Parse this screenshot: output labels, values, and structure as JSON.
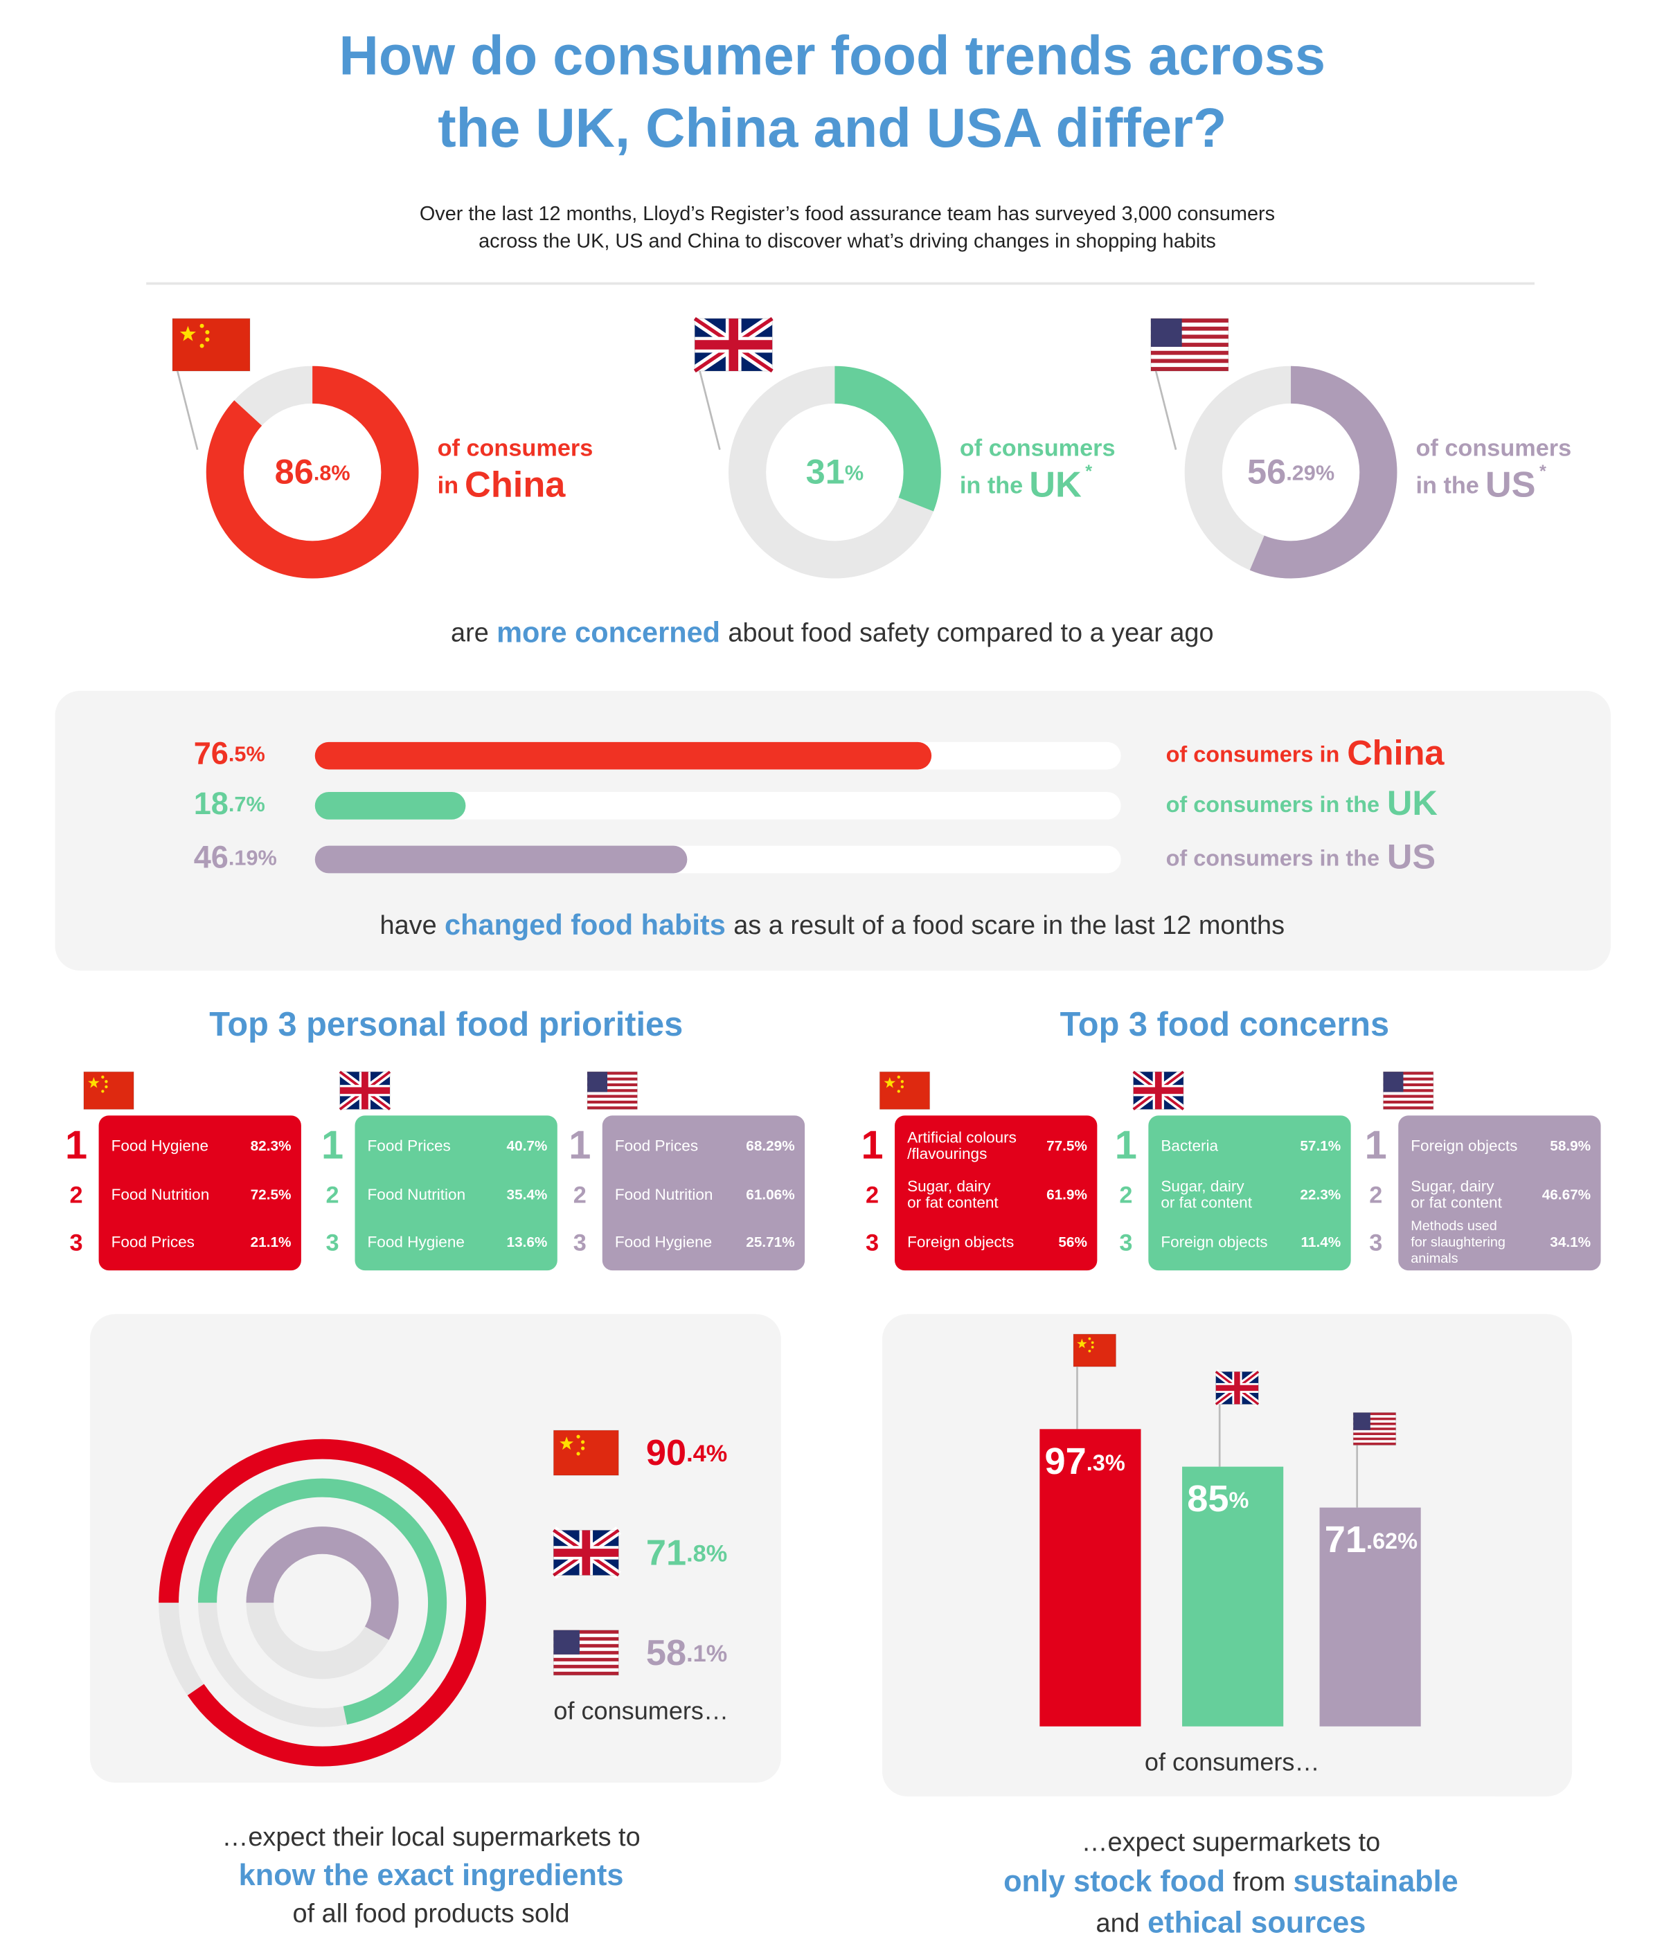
{
  "header": {
    "title": [
      "How do consumer food trends across",
      "the UK, China and USA differ?"
    ],
    "subtitle": [
      "Over the last 12 months, Lloyd’s Register’s food assurance team has surveyed 3,000 consumers",
      "across the UK, US and China to discover what’s driving changes in shopping habits"
    ]
  },
  "chart_data": [
    {
      "type": "donut",
      "categories": [
        "China",
        "UK",
        "US"
      ],
      "values": [
        86.8,
        31,
        56.29
      ],
      "value_labels": [
        "86.8%",
        "31%",
        "56.29%"
      ],
      "colors": [
        "#f03223",
        "#66cf9b",
        "#ae9cb7"
      ],
      "label_prefixes": [
        [
          "of consumers",
          "in"
        ],
        [
          "of consumers",
          "in the"
        ],
        [
          "of consumers",
          "in the"
        ]
      ],
      "notes": [
        null,
        "*",
        "*"
      ],
      "caption": [
        {
          "text": "are"
        },
        {
          "text": "more concerned",
          "em": true
        },
        {
          "text": "about food safety compared to a year ago"
        }
      ]
    },
    {
      "type": "hbar",
      "categories": [
        "China",
        "UK",
        "US"
      ],
      "values": [
        76.5,
        18.7,
        46.19
      ],
      "value_labels": [
        "76.5%",
        "18.7%",
        "46.19%"
      ],
      "colors": [
        "#f03223",
        "#66cf9b",
        "#ae9cb7"
      ],
      "xlim": [
        0,
        100
      ],
      "label_prefixes": [
        "of consumers in",
        "of consumers in the",
        "of consumers in the"
      ],
      "caption": [
        {
          "text": "have"
        },
        {
          "text": "changed food habits",
          "em": true
        },
        {
          "text": "as a result of a food scare in the last 12 months"
        }
      ]
    },
    {
      "type": "rank-cards",
      "title": "Top 3 personal food priorities",
      "colors": [
        "#e2001a",
        "#66cf9b",
        "#ae9cb7"
      ],
      "groups": [
        {
          "items": [
            {
              "rank": 1,
              "name": [
                "Food Hygiene"
              ],
              "value": "82.3%"
            },
            {
              "rank": 2,
              "name": [
                "Food Nutrition"
              ],
              "value": "72.5%"
            },
            {
              "rank": 3,
              "name": [
                "Food Prices"
              ],
              "value": "21.1%"
            }
          ]
        },
        {
          "items": [
            {
              "rank": 1,
              "name": [
                "Food Prices"
              ],
              "value": "40.7%"
            },
            {
              "rank": 2,
              "name": [
                "Food Nutrition"
              ],
              "value": "35.4%"
            },
            {
              "rank": 3,
              "name": [
                "Food Hygiene"
              ],
              "value": "13.6%"
            }
          ]
        },
        {
          "items": [
            {
              "rank": 1,
              "name": [
                "Food Prices"
              ],
              "value": "68.29%"
            },
            {
              "rank": 2,
              "name": [
                "Food Nutrition"
              ],
              "value": "61.06%"
            },
            {
              "rank": 3,
              "name": [
                "Food Hygiene"
              ],
              "value": "25.71%"
            }
          ]
        }
      ]
    },
    {
      "type": "rank-cards",
      "title": "Top 3 food concerns",
      "colors": [
        "#e2001a",
        "#66cf9b",
        "#ae9cb7"
      ],
      "groups": [
        {
          "items": [
            {
              "rank": 1,
              "name": [
                "Artificial colours",
                "/flavourings"
              ],
              "value": "77.5%"
            },
            {
              "rank": 2,
              "name": [
                "Sugar, dairy",
                "or fat content"
              ],
              "value": "61.9%"
            },
            {
              "rank": 3,
              "name": [
                "Foreign objects"
              ],
              "value": "56%"
            }
          ]
        },
        {
          "items": [
            {
              "rank": 1,
              "name": [
                "Bacteria"
              ],
              "value": "57.1%"
            },
            {
              "rank": 2,
              "name": [
                "Sugar, dairy",
                "or fat content"
              ],
              "value": "22.3%"
            },
            {
              "rank": 3,
              "name": [
                "Foreign objects"
              ],
              "value": "11.4%"
            }
          ]
        },
        {
          "items": [
            {
              "rank": 1,
              "name": [
                "Foreign objects"
              ],
              "value": "58.9%"
            },
            {
              "rank": 2,
              "name": [
                "Sugar, dairy",
                "or fat content"
              ],
              "value": "46.67%"
            },
            {
              "rank": 3,
              "name": [
                "Methods used",
                "for slaughtering",
                "animals"
              ],
              "value": "34.1%"
            }
          ]
        }
      ]
    },
    {
      "type": "rings",
      "values": [
        90.4,
        71.8,
        58.1
      ],
      "value_labels": [
        "90.4%",
        "71.8%",
        "58.1%"
      ],
      "colors": [
        "#e2001a",
        "#66cf9b",
        "#ae9cb7"
      ],
      "caption": "of consumers…",
      "footer": [
        [
          {
            "text": "…expect their local supermarkets to"
          }
        ],
        [
          {
            "text": "know the exact ingredients",
            "em": true
          }
        ],
        [
          {
            "text": "of all food products sold"
          }
        ]
      ]
    },
    {
      "type": "column",
      "values": [
        97.3,
        85,
        71.62
      ],
      "value_labels": [
        "97.3%",
        "85%",
        "71.62%"
      ],
      "colors": [
        "#e2001a",
        "#66cf9b",
        "#ae9cb7"
      ],
      "ylim": [
        0,
        100
      ],
      "caption": "of consumers…",
      "footer": [
        [
          {
            "text": "…expect supermarkets to"
          }
        ],
        [
          {
            "text": "only stock food",
            "em": true
          },
          {
            "text": "from"
          },
          {
            "text": "sustainable",
            "em": true
          }
        ],
        [
          {
            "text": "and"
          },
          {
            "text": "ethical sources",
            "em": true
          }
        ]
      ]
    }
  ]
}
